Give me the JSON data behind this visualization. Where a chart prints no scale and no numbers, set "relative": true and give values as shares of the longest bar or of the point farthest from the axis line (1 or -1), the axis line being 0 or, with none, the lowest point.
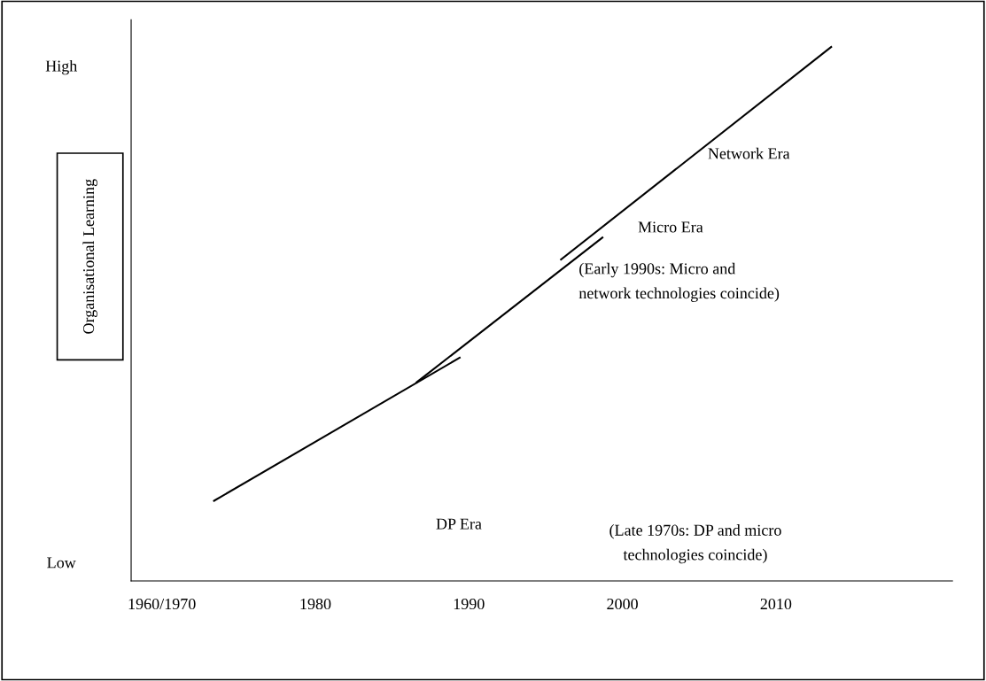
{
  "chart_data": {
    "type": "line",
    "ylabel": "Organisational Learning",
    "relative": true,
    "series": [
      {
        "x": [
          1973.4,
          1989.4
        ],
        "values": [
          0.15,
          0.418
        ],
        "color": "#000000"
      },
      {
        "x": [
          1986.6,
          1998.7
        ],
        "values": [
          0.372,
          0.643
        ],
        "color": "#000000"
      },
      {
        "x": [
          1996.0,
          2013.6
        ],
        "values": [
          0.602,
          1.0
        ],
        "color": "#000000"
      }
    ],
    "xlim": [
      1968,
      2021.5
    ],
    "xticks": [
      {
        "value": 1970,
        "label": "1960/1970"
      },
      1980,
      1990,
      2000,
      2010
    ],
    "annotations": [
      "High",
      "Low",
      "Network Era",
      "Micro Era",
      "(Early 1990s: Micro and\nnetwork technologies coincide)",
      "DP Era",
      "(Late 1970s: DP and micro\ntechnologies coincide)"
    ],
    "grid": false,
    "legend": false,
    "marker": "none",
    "line_style": "solid"
  }
}
